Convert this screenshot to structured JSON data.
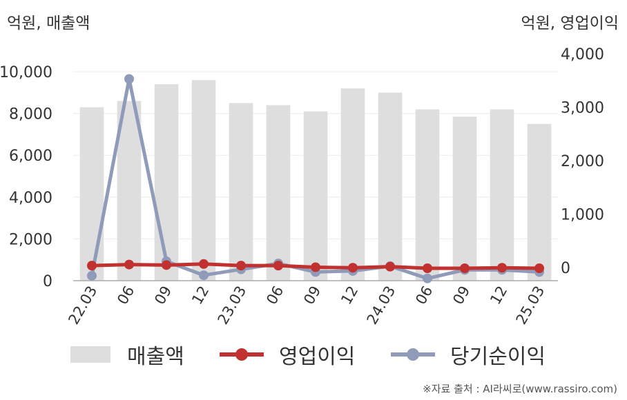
{
  "left_unit_label": "억원, 매출액",
  "right_unit_label": "억원, 영업이익",
  "source_text": "※자료 출처 : AI라씨로(www.rassiro.com)",
  "legend": [
    {
      "label": "매출액",
      "color": "#dedede",
      "kind": "bar"
    },
    {
      "label": "영업이익",
      "color": "#c0312f",
      "kind": "line"
    },
    {
      "label": "당기순이익",
      "color": "#8f9bb8",
      "kind": "line"
    }
  ],
  "chart_data": {
    "type": "bar+line",
    "categories": [
      "22.03",
      "06",
      "09",
      "12",
      "23.03",
      "06",
      "09",
      "12",
      "24.03",
      "06",
      "09",
      "12",
      "25.03"
    ],
    "y_left": {
      "min": 0,
      "max": 10000,
      "ticks": [
        "0",
        "2,000",
        "4,000",
        "6,000",
        "8,000",
        "10,000"
      ],
      "tick_values": [
        0,
        2000,
        4000,
        6000,
        8000,
        10000
      ]
    },
    "y_right": {
      "min": -500,
      "max": 4000,
      "ticks": [
        "0",
        "1,000",
        "2,000",
        "3,000",
        "4,000"
      ],
      "tick_values": [
        0,
        1000,
        2000,
        3000,
        4000
      ]
    },
    "series": [
      {
        "name": "매출액",
        "type": "bar",
        "axis": "left",
        "color": "#dedede",
        "values": [
          8300,
          8600,
          9400,
          9600,
          8500,
          8400,
          8100,
          9200,
          9000,
          8200,
          7850,
          8200,
          7500
        ]
      },
      {
        "name": "영업이익",
        "type": "line",
        "axis": "right",
        "color": "#c0312f",
        "values": [
          40,
          60,
          50,
          70,
          40,
          40,
          10,
          0,
          20,
          -10,
          -10,
          0,
          -10
        ]
      },
      {
        "name": "당기순이익",
        "type": "line",
        "axis": "right",
        "color": "#8f9bb8",
        "values": [
          -150,
          3530,
          120,
          -140,
          -30,
          80,
          -80,
          -60,
          30,
          -200,
          -40,
          -40,
          -80
        ]
      }
    ],
    "grid": true
  }
}
